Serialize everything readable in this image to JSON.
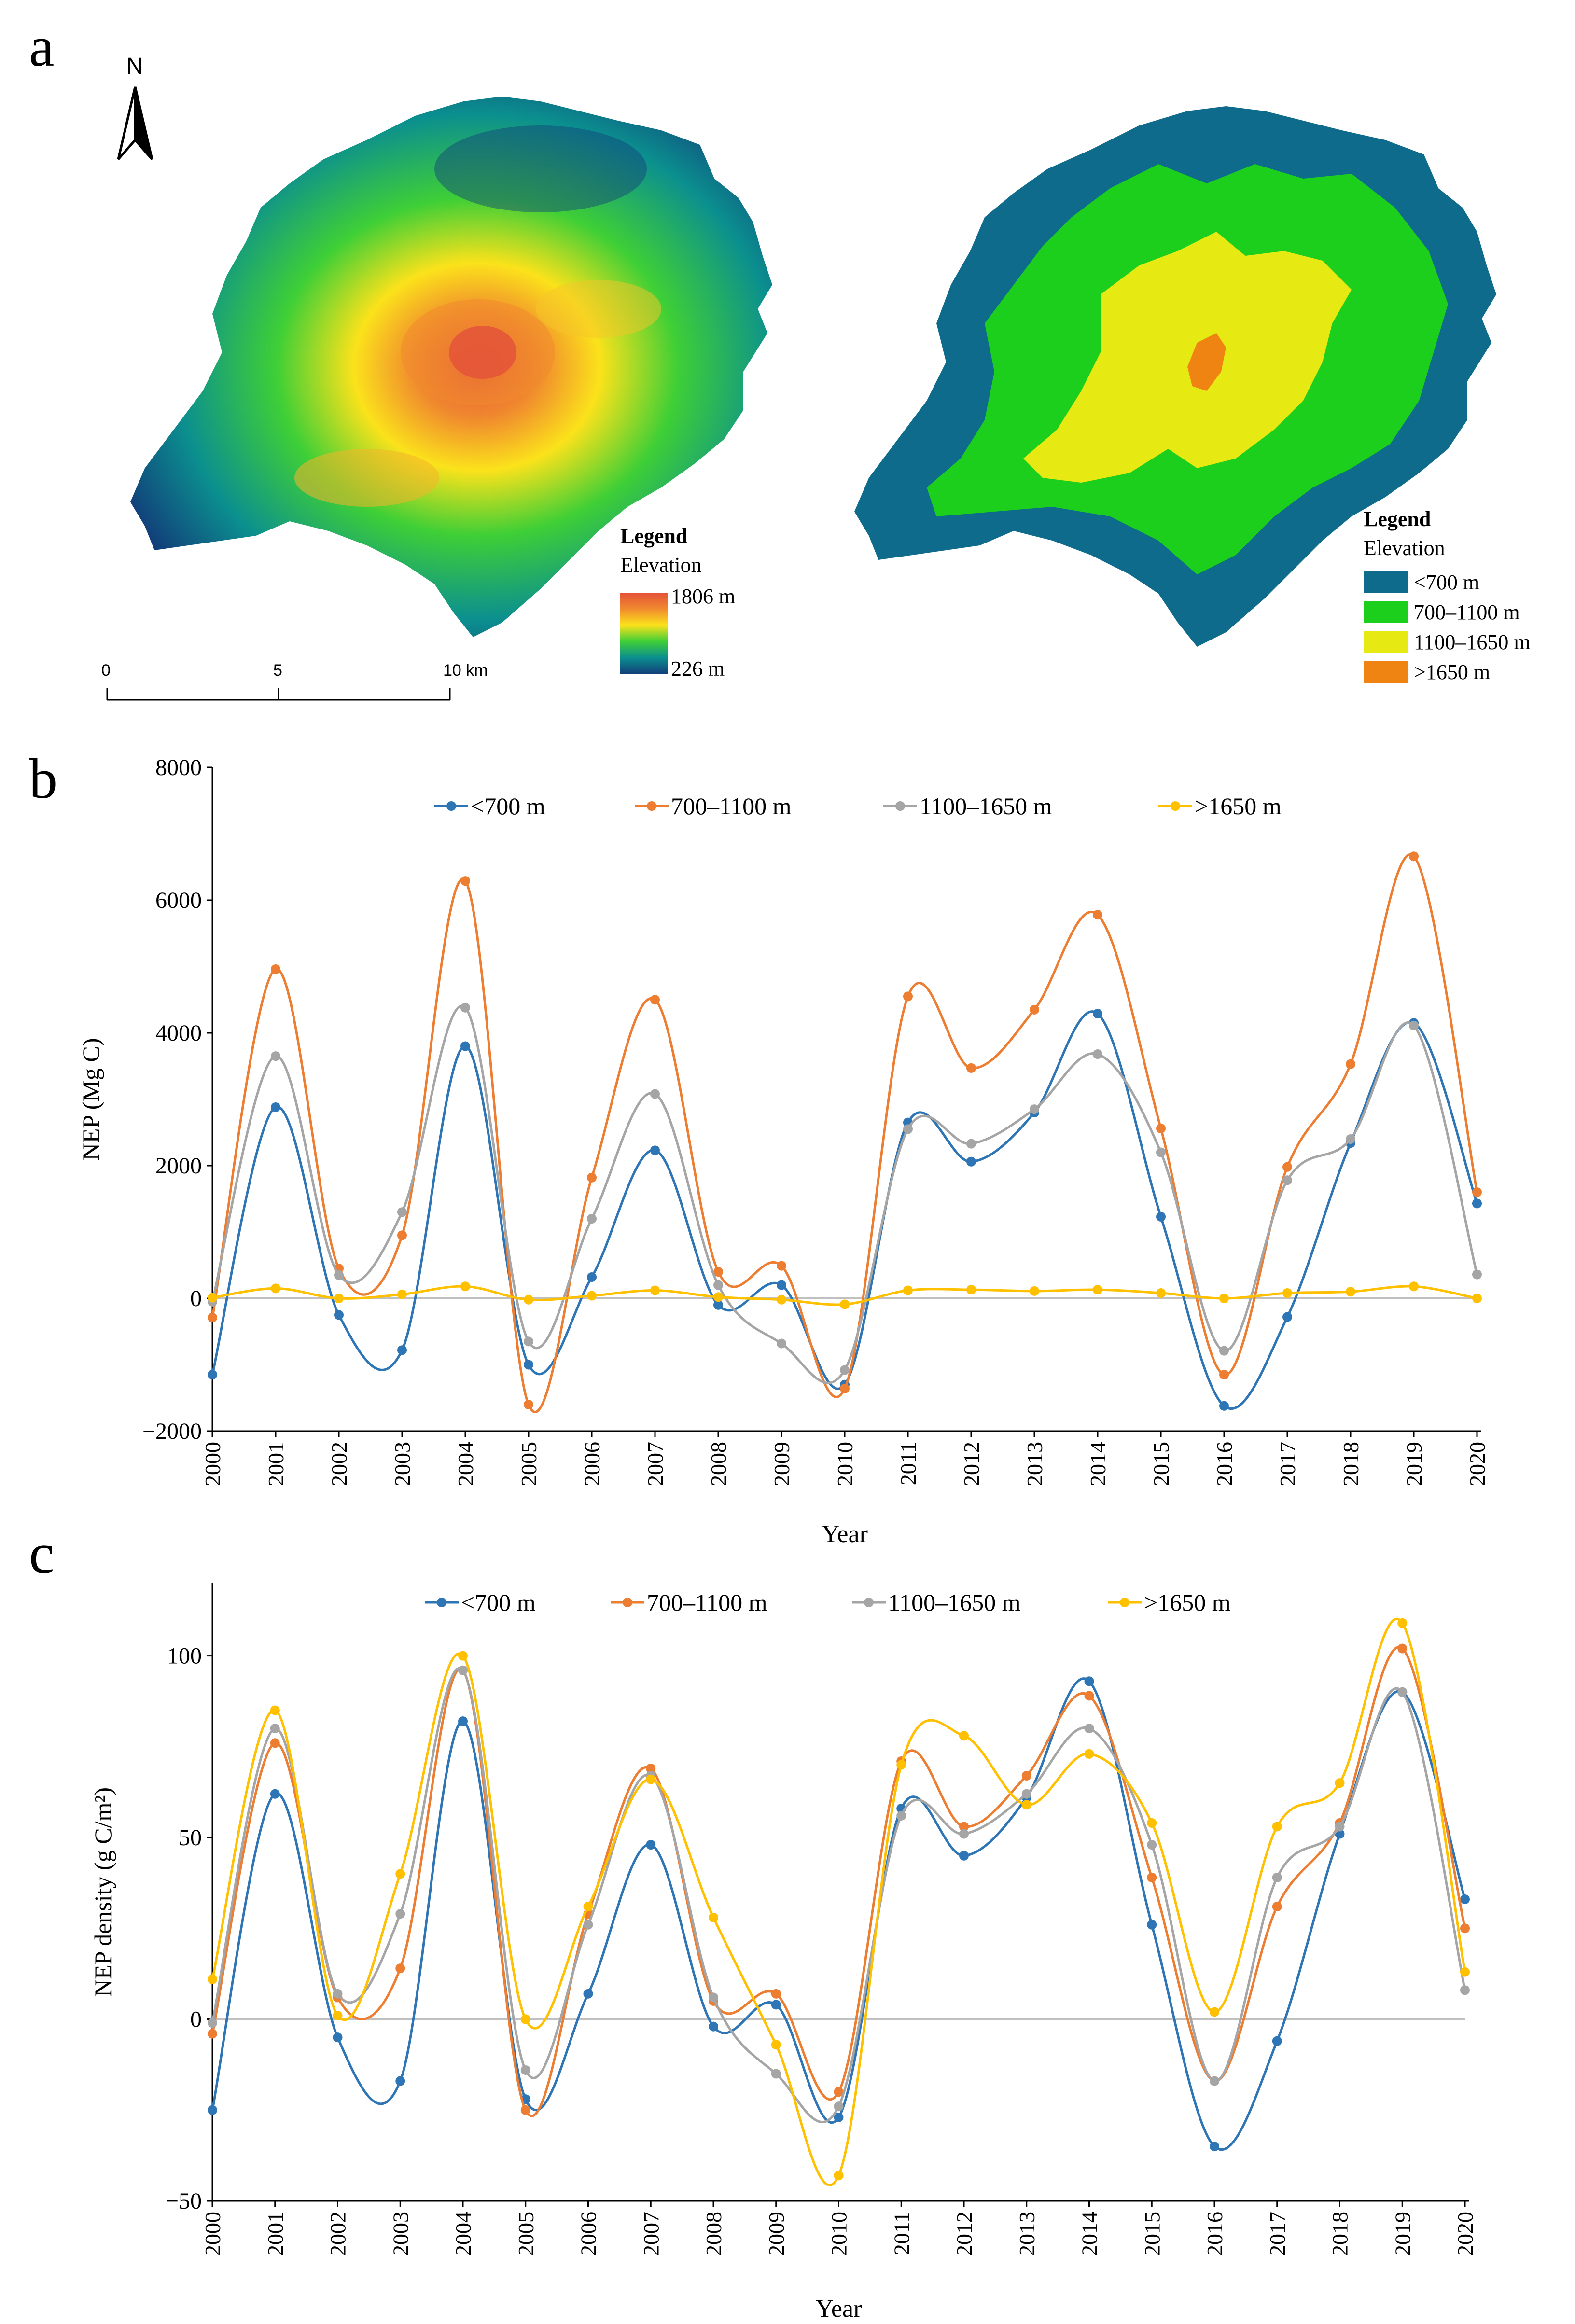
{
  "panels": {
    "a": "a",
    "b": "b",
    "c": "c"
  },
  "north_label": "N",
  "map_left": {
    "legend_title": "Legend",
    "legend_subtitle": "Elevation",
    "max_label": "1806 m",
    "min_label": "226 m",
    "scale_ticks": [
      "0",
      "5",
      "10 km"
    ],
    "ramp_colors": [
      "#e4513a",
      "#f08a2e",
      "#fbe21b",
      "#3fcf36",
      "#0b8f8f",
      "#123f7a"
    ]
  },
  "map_right": {
    "legend_title": "Legend",
    "legend_subtitle": "Elevation",
    "classes": [
      {
        "label": "<700 m",
        "color": "#0e6b8c"
      },
      {
        "label": "700–1100 m",
        "color": "#1ccf1c"
      },
      {
        "label": "1100–1650 m",
        "color": "#e6ea12"
      },
      {
        "label": ">1650 m",
        "color": "#ef8412"
      }
    ]
  },
  "chart_data": [
    {
      "type": "line",
      "title": "",
      "xlabel": "Year",
      "ylabel": "NEP (Mg C)",
      "ylim": [
        -2000,
        8000
      ],
      "yticks": [
        "−2000",
        "0",
        "2000",
        "4000",
        "6000",
        "8000"
      ],
      "ytick_values": [
        -2000,
        0,
        2000,
        4000,
        6000,
        8000
      ],
      "categories": [
        "2000",
        "2001",
        "2002",
        "2003",
        "2004",
        "2005",
        "2006",
        "2007",
        "2008",
        "2009",
        "2010",
        "2011",
        "2012",
        "2013",
        "2014",
        "2015",
        "2016",
        "2017",
        "2018",
        "2019",
        "2020"
      ],
      "legend_position": "top",
      "series": [
        {
          "name": "<700 m",
          "color": "#2e75b6",
          "values": [
            -1150,
            2880,
            -250,
            -780,
            3800,
            -1000,
            320,
            2230,
            -100,
            200,
            -1300,
            2650,
            2060,
            2800,
            4290,
            1230,
            -1620,
            -280,
            2340,
            4150,
            1430
          ]
        },
        {
          "name": "700–1100 m",
          "color": "#ed7d31",
          "values": [
            -290,
            4960,
            450,
            950,
            6290,
            -1600,
            1820,
            4500,
            400,
            490,
            -1360,
            4550,
            3470,
            4350,
            5780,
            2560,
            -1150,
            1980,
            3530,
            6660,
            1600
          ]
        },
        {
          "name": "1100–1650 m",
          "color": "#a5a5a5",
          "values": [
            -50,
            3650,
            350,
            1300,
            4380,
            -650,
            1200,
            3080,
            200,
            -680,
            -1080,
            2550,
            2330,
            2850,
            3680,
            2200,
            -790,
            1780,
            2400,
            4110,
            360
          ]
        },
        {
          "name": ">1650 m",
          "color": "#ffc000",
          "values": [
            10,
            150,
            0,
            60,
            180,
            -20,
            40,
            120,
            20,
            -20,
            -90,
            120,
            130,
            110,
            130,
            80,
            0,
            80,
            100,
            180,
            0
          ]
        }
      ]
    },
    {
      "type": "line",
      "title": "",
      "xlabel": "Year",
      "ylabel": "NEP density (g C/m²)",
      "ylim": [
        -50,
        120
      ],
      "yticks": [
        "−50",
        "0",
        "50",
        "100"
      ],
      "ytick_values": [
        -50,
        0,
        50,
        100
      ],
      "categories": [
        "2000",
        "2001",
        "2002",
        "2003",
        "2004",
        "2005",
        "2006",
        "2007",
        "2008",
        "2009",
        "2010",
        "2011",
        "2012",
        "2013",
        "2014",
        "2015",
        "2016",
        "2017",
        "2018",
        "2019",
        "2020"
      ],
      "legend_position": "top",
      "series": [
        {
          "name": "<700 m",
          "color": "#2e75b6",
          "values": [
            -25,
            62,
            -5,
            -17,
            82,
            -22,
            7,
            48,
            -2,
            4,
            -27,
            58,
            45,
            61,
            93,
            26,
            -35,
            -6,
            51,
            90,
            33
          ]
        },
        {
          "name": "700–1100 m",
          "color": "#ed7d31",
          "values": [
            -4,
            76,
            6,
            14,
            96,
            -25,
            29,
            69,
            5,
            7,
            -20,
            71,
            53,
            67,
            89,
            39,
            -17,
            31,
            54,
            102,
            25
          ]
        },
        {
          "name": "1100–1650 m",
          "color": "#a5a5a5",
          "values": [
            -1,
            80,
            7,
            29,
            96,
            -14,
            26,
            67,
            6,
            -15,
            -24,
            56,
            51,
            62,
            80,
            48,
            -17,
            39,
            53,
            90,
            8
          ]
        },
        {
          "name": ">1650 m",
          "color": "#ffc000",
          "values": [
            11,
            85,
            1,
            40,
            100,
            0,
            31,
            66,
            28,
            -7,
            -43,
            70,
            78,
            59,
            73,
            54,
            2,
            53,
            65,
            109,
            13
          ]
        }
      ]
    }
  ]
}
